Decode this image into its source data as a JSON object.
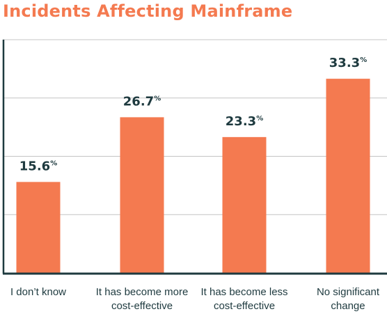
{
  "chart_data": {
    "type": "bar",
    "title": "Incidents Affecting Mainframe",
    "categories": [
      [
        "I don’t know"
      ],
      [
        "It has become more",
        "cost-effective"
      ],
      [
        "It has become less",
        "cost-effective"
      ],
      [
        "No significant",
        "change"
      ]
    ],
    "values": [
      15.6,
      26.7,
      23.3,
      33.3
    ],
    "value_suffix": "%",
    "ylim": [
      0,
      40
    ],
    "grid": true,
    "xlabel": "",
    "ylabel": ""
  },
  "colors": {
    "title": "#f47a50",
    "bar": "#f47a50",
    "text": "#1e3a3f",
    "axis": "#1e3a3f",
    "grid": "#c4c4c4"
  }
}
